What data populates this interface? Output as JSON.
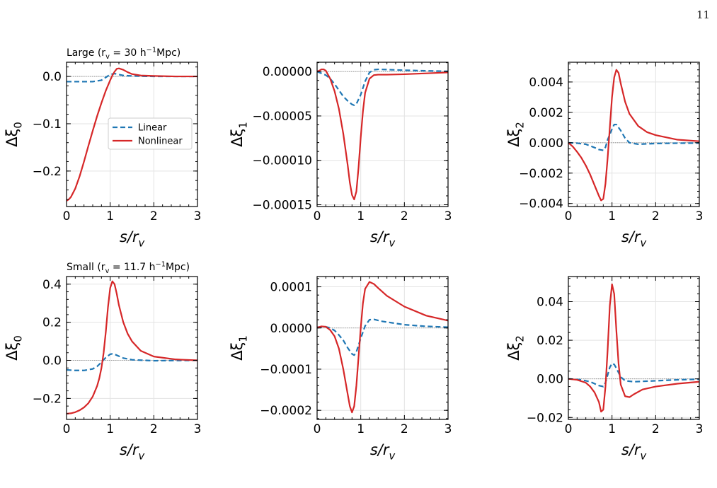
{
  "page_number": "11",
  "colors": {
    "linear": "#1f77b4",
    "nonlinear": "#d62728"
  },
  "chart_data": [
    {
      "type": "line",
      "title": "Large (r_v = 30 h^-1Mpc)",
      "xlabel": "s/r_v",
      "ylabel": "Δξ_0",
      "xlim": [
        0,
        3
      ],
      "ylim": [
        -0.275,
        0.03
      ],
      "xticks": [
        0,
        1,
        2,
        3
      ],
      "yticks": [
        -0.2,
        -0.1,
        0.0
      ],
      "yticklabels": [
        "−0.2",
        "−0.1",
        "0.0"
      ],
      "grid": true,
      "legend": "center-right",
      "series": [
        {
          "name": "Linear",
          "style": "dashed",
          "color": "#1f77b4",
          "x": [
            0,
            0.2,
            0.4,
            0.6,
            0.8,
            0.9,
            1.0,
            1.1,
            1.2,
            1.3,
            1.5,
            2.0,
            2.5,
            3.0
          ],
          "y": [
            -0.011,
            -0.011,
            -0.011,
            -0.011,
            -0.008,
            -0.002,
            0.004,
            0.006,
            0.004,
            0.002,
            0.001,
            0.0,
            0.0,
            0.0
          ]
        },
        {
          "name": "Nonlinear",
          "style": "solid",
          "color": "#d62728",
          "x": [
            0,
            0.05,
            0.1,
            0.2,
            0.3,
            0.4,
            0.5,
            0.6,
            0.7,
            0.8,
            0.9,
            1.0,
            1.05,
            1.1,
            1.15,
            1.2,
            1.3,
            1.4,
            1.5,
            1.7,
            2.0,
            2.5,
            3.0
          ],
          "y": [
            -0.263,
            -0.26,
            -0.255,
            -0.237,
            -0.211,
            -0.18,
            -0.147,
            -0.115,
            -0.084,
            -0.056,
            -0.03,
            -0.008,
            0.002,
            0.01,
            0.016,
            0.017,
            0.014,
            0.009,
            0.005,
            0.002,
            0.001,
            0.0,
            0.0
          ]
        }
      ]
    },
    {
      "type": "line",
      "title": "",
      "xlabel": "s/r_v",
      "ylabel": "Δξ_1",
      "xlim": [
        0,
        3
      ],
      "ylim": [
        -0.000152,
        1.05e-05
      ],
      "xticks": [
        0,
        1,
        2,
        3
      ],
      "yticks": [
        -0.00015,
        -0.0001,
        -5e-05,
        0.0
      ],
      "yticklabels": [
        "−0.00015",
        "−0.00010",
        "−0.00005",
        "0.00000"
      ],
      "grid": true,
      "series": [
        {
          "name": "Linear",
          "style": "dashed",
          "color": "#1f77b4",
          "x": [
            0,
            0.1,
            0.2,
            0.3,
            0.4,
            0.5,
            0.6,
            0.7,
            0.8,
            0.85,
            0.9,
            1.0,
            1.1,
            1.2,
            1.3,
            1.4,
            1.6,
            2.0,
            2.5,
            3.0
          ],
          "y": [
            0.0,
            -2e-06,
            -4e-06,
            -8e-06,
            -1.4e-05,
            -2.1e-05,
            -2.8e-05,
            -3.3e-05,
            -3.7e-05,
            -3.8e-05,
            -3.65e-05,
            -2.6e-05,
            -1.1e-05,
            -1e-06,
            2e-06,
            2.5e-06,
            2.2e-06,
            1.5e-06,
            8e-07,
            3e-07
          ]
        },
        {
          "name": "Nonlinear",
          "style": "solid",
          "color": "#d62728",
          "x": [
            0,
            0.05,
            0.1,
            0.15,
            0.2,
            0.3,
            0.4,
            0.5,
            0.6,
            0.7,
            0.75,
            0.8,
            0.85,
            0.9,
            0.95,
            1.0,
            1.05,
            1.1,
            1.2,
            1.3,
            1.4,
            1.6,
            2.0,
            2.5,
            3.0
          ],
          "y": [
            0.0,
            1e-06,
            2.5e-06,
            2.5e-06,
            1e-06,
            -8e-06,
            -2.2e-05,
            -4.2e-05,
            -7e-05,
            -0.000105,
            -0.000125,
            -0.000139,
            -0.000144,
            -0.000135,
            -0.000108,
            -7.4e-05,
            -4.5e-05,
            -2.4e-05,
            -8e-06,
            -4e-06,
            -3.5e-06,
            -3.5e-06,
            -3e-06,
            -2e-06,
            -1e-06
          ]
        }
      ]
    },
    {
      "type": "line",
      "title": "",
      "xlabel": "s/r_v",
      "ylabel": "Δξ_2",
      "xlim": [
        0,
        3
      ],
      "ylim": [
        -0.0042,
        0.0053
      ],
      "xticks": [
        0,
        1,
        2,
        3
      ],
      "yticks": [
        -0.004,
        -0.002,
        0.0,
        0.002,
        0.004
      ],
      "yticklabels": [
        "−0.004",
        "−0.002",
        "0.000",
        "0.002",
        "0.004"
      ],
      "grid": true,
      "series": [
        {
          "name": "Linear",
          "style": "dashed",
          "color": "#1f77b4",
          "x": [
            0,
            0.2,
            0.4,
            0.6,
            0.7,
            0.8,
            0.85,
            0.9,
            1.0,
            1.05,
            1.1,
            1.2,
            1.3,
            1.4,
            1.6,
            2.0,
            2.5,
            3.0
          ],
          "y": [
            0.0,
            -3e-05,
            -0.0001,
            -0.00032,
            -0.00045,
            -0.0005,
            -0.0003,
            0.0002,
            0.0009,
            0.0012,
            0.0012,
            0.0008,
            0.0003,
            0.0,
            -0.0001,
            -5e-05,
            -3e-05,
            -2e-05
          ]
        },
        {
          "name": "Nonlinear",
          "style": "solid",
          "color": "#d62728",
          "x": [
            0,
            0.1,
            0.2,
            0.3,
            0.4,
            0.5,
            0.6,
            0.7,
            0.75,
            0.8,
            0.85,
            0.9,
            0.95,
            1.0,
            1.05,
            1.1,
            1.15,
            1.2,
            1.3,
            1.4,
            1.6,
            1.8,
            2.0,
            2.5,
            3.0
          ],
          "y": [
            0.0,
            -0.00025,
            -0.0006,
            -0.001,
            -0.0015,
            -0.0021,
            -0.0028,
            -0.0035,
            -0.0038,
            -0.0037,
            -0.0027,
            -0.001,
            0.001,
            0.003,
            0.0043,
            0.0048,
            0.0046,
            0.0039,
            0.0027,
            0.0019,
            0.0011,
            0.0007,
            0.0005,
            0.0002,
            0.0001
          ]
        }
      ]
    },
    {
      "type": "line",
      "title": "Small (r_v = 11.7 h^-1Mpc)",
      "xlabel": "s/r_v",
      "ylabel": "Δξ_0",
      "xlim": [
        0,
        3
      ],
      "ylim": [
        -0.31,
        0.44
      ],
      "xticks": [
        0,
        1,
        2,
        3
      ],
      "yticks": [
        -0.2,
        0.0,
        0.2,
        0.4
      ],
      "yticklabels": [
        "−0.2",
        "0.0",
        "0.2",
        "0.4"
      ],
      "grid": true,
      "series": [
        {
          "name": "Linear",
          "style": "dashed",
          "color": "#1f77b4",
          "x": [
            0,
            0.2,
            0.4,
            0.6,
            0.7,
            0.8,
            0.9,
            1.0,
            1.05,
            1.1,
            1.2,
            1.3,
            1.5,
            2.0,
            2.5,
            3.0
          ],
          "y": [
            -0.05,
            -0.053,
            -0.053,
            -0.045,
            -0.032,
            -0.01,
            0.015,
            0.032,
            0.034,
            0.032,
            0.022,
            0.012,
            0.003,
            -0.002,
            -0.001,
            0.0
          ]
        },
        {
          "name": "Nonlinear",
          "style": "solid",
          "color": "#d62728",
          "x": [
            0,
            0.1,
            0.2,
            0.3,
            0.4,
            0.5,
            0.6,
            0.7,
            0.75,
            0.8,
            0.85,
            0.9,
            0.95,
            1.0,
            1.05,
            1.1,
            1.15,
            1.2,
            1.3,
            1.4,
            1.5,
            1.7,
            2.0,
            2.5,
            3.0
          ],
          "y": [
            -0.28,
            -0.278,
            -0.272,
            -0.262,
            -0.247,
            -0.225,
            -0.19,
            -0.135,
            -0.095,
            -0.04,
            0.04,
            0.15,
            0.28,
            0.38,
            0.415,
            0.4,
            0.35,
            0.29,
            0.2,
            0.14,
            0.1,
            0.05,
            0.02,
            0.005,
            0.0
          ]
        }
      ]
    },
    {
      "type": "line",
      "title": "",
      "xlabel": "s/r_v",
      "ylabel": "Δξ_1",
      "xlim": [
        0,
        3
      ],
      "ylim": [
        -0.000222,
        0.000125
      ],
      "xticks": [
        0,
        1,
        2,
        3
      ],
      "yticks": [
        -0.0002,
        -0.0001,
        0.0,
        0.0001
      ],
      "yticklabels": [
        "−0.0002",
        "−0.0001",
        "0.0000",
        "0.0001"
      ],
      "grid": true,
      "series": [
        {
          "name": "Linear",
          "style": "dashed",
          "color": "#1f77b4",
          "x": [
            0,
            0.2,
            0.3,
            0.4,
            0.5,
            0.6,
            0.7,
            0.8,
            0.85,
            0.9,
            1.0,
            1.1,
            1.2,
            1.3,
            1.5,
            2.0,
            2.5,
            3.0
          ],
          "y": [
            2e-06,
            3e-06,
            0.0,
            -6e-06,
            -1.7e-05,
            -3e-05,
            -4.8e-05,
            -6.3e-05,
            -6.6e-05,
            -5.8e-05,
            -2.5e-05,
            5e-06,
            2e-05,
            2.1e-05,
            1.6e-05,
            8e-06,
            4e-06,
            2e-06
          ]
        },
        {
          "name": "Nonlinear",
          "style": "solid",
          "color": "#d62728",
          "x": [
            0,
            0.1,
            0.2,
            0.3,
            0.4,
            0.5,
            0.6,
            0.7,
            0.75,
            0.8,
            0.85,
            0.9,
            0.95,
            1.0,
            1.05,
            1.1,
            1.2,
            1.3,
            1.4,
            1.6,
            2.0,
            2.5,
            3.0
          ],
          "y": [
            1e-06,
            4e-06,
            3e-06,
            -5e-06,
            -2e-05,
            -5e-05,
            -0.0001,
            -0.00016,
            -0.00019,
            -0.000205,
            -0.00019,
            -0.00014,
            -7e-05,
            0.0,
            6e-05,
            9.5e-05,
            0.000112,
            0.000107,
            9.7e-05,
            7.8e-05,
            5.2e-05,
            3e-05,
            1.8e-05
          ]
        }
      ]
    },
    {
      "type": "line",
      "title": "",
      "xlabel": "s/r_v",
      "ylabel": "Δξ_2",
      "xlim": [
        0,
        3
      ],
      "ylim": [
        -0.021,
        0.053
      ],
      "xticks": [
        0,
        1,
        2,
        3
      ],
      "yticks": [
        -0.02,
        0.0,
        0.02,
        0.04
      ],
      "yticklabels": [
        "−0.02",
        "0.00",
        "0.02",
        "0.04"
      ],
      "grid": true,
      "series": [
        {
          "name": "Linear",
          "style": "dashed",
          "color": "#1f77b4",
          "x": [
            0,
            0.3,
            0.5,
            0.6,
            0.7,
            0.8,
            0.85,
            0.9,
            0.95,
            1.0,
            1.05,
            1.1,
            1.2,
            1.3,
            1.5,
            2.0,
            2.5,
            3.0
          ],
          "y": [
            0.0,
            -0.0005,
            -0.0015,
            -0.0025,
            -0.0035,
            -0.004,
            -0.002,
            0.002,
            0.006,
            0.008,
            0.0075,
            0.0055,
            0.001,
            -0.001,
            -0.0015,
            -0.001,
            -0.0005,
            -0.0002
          ]
        },
        {
          "name": "Nonlinear",
          "style": "solid",
          "color": "#d62728",
          "x": [
            0,
            0.2,
            0.4,
            0.5,
            0.6,
            0.7,
            0.75,
            0.8,
            0.85,
            0.9,
            0.95,
            1.0,
            1.05,
            1.1,
            1.15,
            1.2,
            1.3,
            1.4,
            1.5,
            1.7,
            2.0,
            2.5,
            3.0
          ],
          "y": [
            0.0,
            -0.0005,
            -0.002,
            -0.004,
            -0.007,
            -0.012,
            -0.017,
            -0.016,
            -0.004,
            0.015,
            0.038,
            0.049,
            0.044,
            0.025,
            0.008,
            -0.003,
            -0.009,
            -0.0095,
            -0.008,
            -0.0055,
            -0.004,
            -0.0025,
            -0.0015
          ]
        }
      ]
    }
  ]
}
